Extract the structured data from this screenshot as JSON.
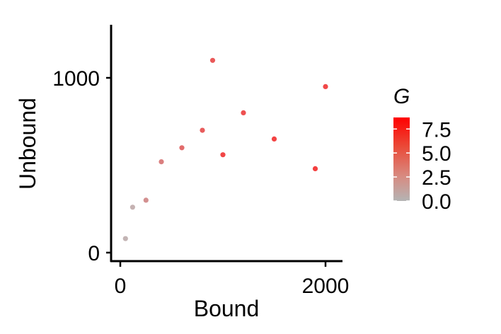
{
  "chart_data": {
    "type": "scatter",
    "title": "",
    "xlabel": "Bound",
    "ylabel": "Unbound",
    "xlim": [
      -40,
      2150
    ],
    "ylim": [
      -40,
      1290
    ],
    "xticks": [
      0,
      2000
    ],
    "xtick_labels": [
      "0",
      "2000"
    ],
    "yticks": [
      0,
      1000
    ],
    "ytick_labels": [
      "0",
      "1000"
    ],
    "grid": false,
    "color_variable": "G",
    "color_scale": {
      "low_color": "#b4b4b4",
      "high_color": "#ff0000",
      "limits": [
        0,
        8.7
      ],
      "breaks": [
        0.0,
        2.5,
        5.0,
        7.5
      ],
      "break_labels": [
        "0.0",
        "2.5",
        "5.0",
        "7.5"
      ]
    },
    "legend_position": "right",
    "points": [
      {
        "x": 50,
        "y": 80,
        "g": 0.4
      },
      {
        "x": 120,
        "y": 260,
        "g": 0.5
      },
      {
        "x": 250,
        "y": 300,
        "g": 2.2
      },
      {
        "x": 400,
        "y": 520,
        "g": 3.1
      },
      {
        "x": 600,
        "y": 600,
        "g": 4.3
      },
      {
        "x": 800,
        "y": 700,
        "g": 5.2
      },
      {
        "x": 900,
        "y": 1100,
        "g": 5.4
      },
      {
        "x": 1000,
        "y": 560,
        "g": 6.6
      },
      {
        "x": 1200,
        "y": 800,
        "g": 6.0
      },
      {
        "x": 1500,
        "y": 650,
        "g": 6.8
      },
      {
        "x": 2000,
        "y": 950,
        "g": 6.5
      },
      {
        "x": 1900,
        "y": 480,
        "g": 7.0
      }
    ],
    "approx_point_count": 12
  }
}
